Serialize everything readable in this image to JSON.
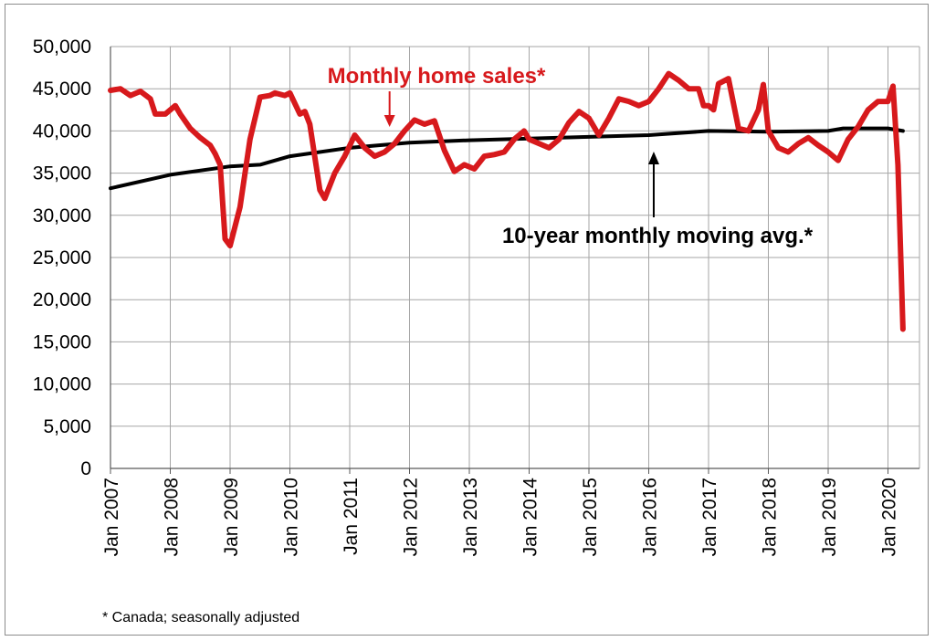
{
  "chart_data": {
    "type": "line",
    "title": "",
    "xlabel": "",
    "ylabel": "",
    "ylim": [
      0,
      50000
    ],
    "yticks": [
      0,
      5000,
      10000,
      15000,
      20000,
      25000,
      30000,
      35000,
      40000,
      45000,
      50000
    ],
    "ytick_labels": [
      "0",
      "5,000",
      "10,000",
      "15,000",
      "20,000",
      "25,000",
      "30,000",
      "35,000",
      "40,000",
      "45,000",
      "50,000"
    ],
    "xlim": [
      "2007-01",
      "2020-04"
    ],
    "xtick_labels": [
      "Jan 2007",
      "Jan 2008",
      "Jan 2009",
      "Jan 2010",
      "Jan 2011",
      "Jan 2012",
      "Jan 2013",
      "Jan 2014",
      "Jan 2015",
      "Jan 2016",
      "Jan 2017",
      "Jan 2018",
      "Jan 2019",
      "Jan 2020"
    ],
    "grid": true,
    "footnote": "* Canada; seasonally adjusted",
    "series": [
      {
        "name": "Monthly home sales*",
        "color": "#d7191c",
        "points": [
          [
            "2007-01",
            44800
          ],
          [
            "2007-03",
            45000
          ],
          [
            "2007-05",
            44200
          ],
          [
            "2007-07",
            44700
          ],
          [
            "2007-09",
            43800
          ],
          [
            "2007-10",
            42000
          ],
          [
            "2007-12",
            42000
          ],
          [
            "2008-02",
            43000
          ],
          [
            "2008-03",
            42000
          ],
          [
            "2008-05",
            40300
          ],
          [
            "2008-07",
            39200
          ],
          [
            "2008-09",
            38300
          ],
          [
            "2008-10",
            37300
          ],
          [
            "2008-11",
            36000
          ],
          [
            "2008-12",
            27200
          ],
          [
            "2009-01",
            26400
          ],
          [
            "2009-03",
            31000
          ],
          [
            "2009-05",
            39000
          ],
          [
            "2009-07",
            44000
          ],
          [
            "2009-09",
            44200
          ],
          [
            "2009-10",
            44500
          ],
          [
            "2009-12",
            44200
          ],
          [
            "2010-01",
            44500
          ],
          [
            "2010-03",
            42000
          ],
          [
            "2010-04",
            42300
          ],
          [
            "2010-05",
            40800
          ],
          [
            "2010-07",
            33000
          ],
          [
            "2010-08",
            32000
          ],
          [
            "2010-10",
            35000
          ],
          [
            "2010-12",
            37000
          ],
          [
            "2011-02",
            39500
          ],
          [
            "2011-04",
            38000
          ],
          [
            "2011-06",
            37000
          ],
          [
            "2011-08",
            37500
          ],
          [
            "2011-10",
            38500
          ],
          [
            "2011-12",
            40000
          ],
          [
            "2012-02",
            41300
          ],
          [
            "2012-04",
            40800
          ],
          [
            "2012-06",
            41200
          ],
          [
            "2012-08",
            37700
          ],
          [
            "2012-10",
            35200
          ],
          [
            "2012-12",
            36000
          ],
          [
            "2013-02",
            35500
          ],
          [
            "2013-04",
            37000
          ],
          [
            "2013-06",
            37200
          ],
          [
            "2013-08",
            37500
          ],
          [
            "2013-10",
            39000
          ],
          [
            "2013-12",
            40000
          ],
          [
            "2014-01",
            39000
          ],
          [
            "2014-03",
            38500
          ],
          [
            "2014-05",
            38000
          ],
          [
            "2014-07",
            39000
          ],
          [
            "2014-09",
            41000
          ],
          [
            "2014-11",
            42300
          ],
          [
            "2015-01",
            41500
          ],
          [
            "2015-03",
            39500
          ],
          [
            "2015-05",
            41500
          ],
          [
            "2015-07",
            43800
          ],
          [
            "2015-09",
            43500
          ],
          [
            "2015-11",
            43000
          ],
          [
            "2016-01",
            43500
          ],
          [
            "2016-03",
            45000
          ],
          [
            "2016-05",
            46800
          ],
          [
            "2016-07",
            46000
          ],
          [
            "2016-09",
            45000
          ],
          [
            "2016-11",
            45000
          ],
          [
            "2016-12",
            43000
          ],
          [
            "2017-01",
            43000
          ],
          [
            "2017-02",
            42500
          ],
          [
            "2017-03",
            45600
          ],
          [
            "2017-05",
            46200
          ],
          [
            "2017-07",
            40300
          ],
          [
            "2017-09",
            40000
          ],
          [
            "2017-11",
            42500
          ],
          [
            "2017-12",
            45500
          ],
          [
            "2018-01",
            40000
          ],
          [
            "2018-03",
            38000
          ],
          [
            "2018-05",
            37500
          ],
          [
            "2018-07",
            38500
          ],
          [
            "2018-09",
            39200
          ],
          [
            "2018-11",
            38300
          ],
          [
            "2019-01",
            37500
          ],
          [
            "2019-03",
            36500
          ],
          [
            "2019-05",
            39000
          ],
          [
            "2019-07",
            40500
          ],
          [
            "2019-09",
            42500
          ],
          [
            "2019-11",
            43500
          ],
          [
            "2020-01",
            43500
          ],
          [
            "2020-02",
            45300
          ],
          [
            "2020-03",
            36000
          ],
          [
            "2020-04",
            16500
          ]
        ]
      },
      {
        "name": "10-year monthly moving avg.*",
        "color": "#000000",
        "points": [
          [
            "2007-01",
            33200
          ],
          [
            "2008-01",
            34800
          ],
          [
            "2009-01",
            35800
          ],
          [
            "2009-07",
            36000
          ],
          [
            "2010-01",
            37000
          ],
          [
            "2011-01",
            38000
          ],
          [
            "2012-01",
            38600
          ],
          [
            "2013-01",
            38900
          ],
          [
            "2014-01",
            39100
          ],
          [
            "2015-01",
            39300
          ],
          [
            "2016-01",
            39500
          ],
          [
            "2017-01",
            40000
          ],
          [
            "2018-01",
            39900
          ],
          [
            "2019-01",
            40000
          ],
          [
            "2019-04",
            40300
          ],
          [
            "2020-01",
            40300
          ],
          [
            "2020-04",
            40000
          ]
        ]
      }
    ],
    "annotations": [
      {
        "text": "Monthly home sales*",
        "color": "#d7191c",
        "arrow": "down",
        "points_to": [
          "2011-09",
          39000
        ]
      },
      {
        "text": "10-year monthly moving avg.*",
        "color": "#000000",
        "arrow": "up",
        "points_to": [
          "2016-02",
          39500
        ]
      }
    ]
  }
}
